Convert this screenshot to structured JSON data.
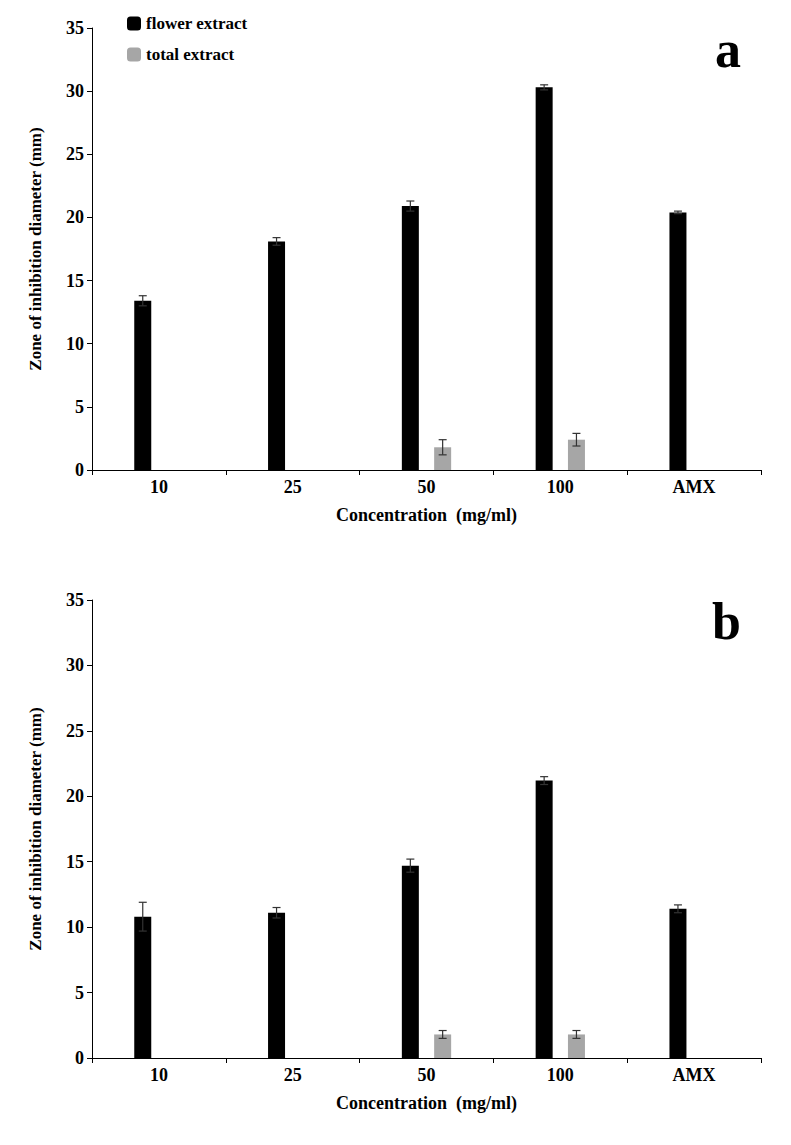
{
  "chart_data": [
    {
      "type": "bar",
      "title": "a",
      "x_label": "Concentration  (mg/ml)",
      "y_label": "Zone of inhibition diameter (mm)",
      "categories": [
        "10",
        "25",
        "50",
        "100",
        "AMX"
      ],
      "series": [
        {
          "name": "flower extract",
          "color": "#000000",
          "values": [
            13.4,
            18.1,
            20.9,
            30.3,
            20.4
          ],
          "errors": [
            0.4,
            0.3,
            0.4,
            0.2,
            0.1
          ]
        },
        {
          "name": "total extract",
          "color": "#a6a6a6",
          "values": [
            null,
            null,
            1.8,
            2.4,
            null
          ],
          "errors": [
            null,
            null,
            0.6,
            0.5,
            null
          ]
        }
      ],
      "ylim": [
        0,
        35
      ],
      "yticks": [
        0,
        5,
        10,
        15,
        20,
        25,
        30,
        35
      ],
      "grid": false,
      "legend": "top-left"
    },
    {
      "type": "bar",
      "title": "b",
      "x_label": "Concentration  (mg/ml)",
      "y_label": "Zone of inhibition diameter (mm)",
      "categories": [
        "10",
        "25",
        "50",
        "100",
        "AMX"
      ],
      "series": [
        {
          "color": "#000000",
          "values": [
            10.8,
            11.1,
            14.7,
            21.2,
            11.4
          ],
          "errors": [
            1.1,
            0.4,
            0.5,
            0.3,
            0.3
          ]
        },
        {
          "color": "#a6a6a6",
          "values": [
            null,
            null,
            1.8,
            1.8,
            null
          ],
          "errors": [
            null,
            null,
            0.3,
            0.3,
            null
          ]
        }
      ],
      "ylim": [
        0,
        35
      ],
      "yticks": [
        0,
        5,
        10,
        15,
        20,
        25,
        30,
        35
      ],
      "grid": false
    }
  ]
}
